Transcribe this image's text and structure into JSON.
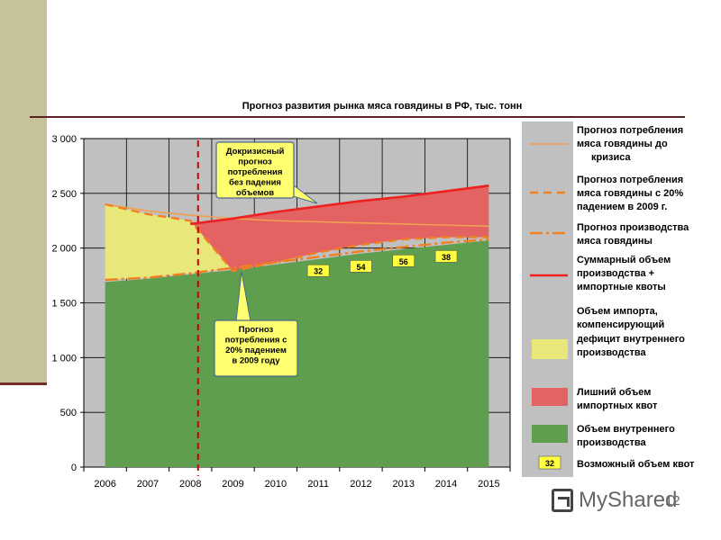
{
  "chart_data": {
    "type": "area",
    "title": "Прогноз развития рынка мяса говядины в РФ, тыс. тонн",
    "categories": [
      "2006",
      "2007",
      "2008",
      "2009",
      "2010",
      "2011",
      "2012",
      "2013",
      "2014",
      "2015"
    ],
    "ylim": [
      0,
      3000
    ],
    "yticks": [
      0,
      500,
      1000,
      1500,
      2000,
      2500,
      3000
    ],
    "ytick_labels": [
      "0",
      "500",
      "1 000",
      "1 500",
      "2 000",
      "2 500",
      "3 000"
    ],
    "grid": true,
    "legend_position": "right",
    "series": [
      {
        "key": "precrisis",
        "name": "Прогноз потребления мяса говядины до кризиса",
        "color": "#f0a050",
        "values": [
          2400,
          2340,
          2300,
          2270,
          2250,
          2240,
          2230,
          2220,
          2210,
          2200
        ]
      },
      {
        "key": "consumption",
        "name": "Прогноз потребления мяса говядины с 20% падением в 2009 г.",
        "color": "#f08020",
        "values": [
          2400,
          2310,
          2250,
          1790,
          1870,
          1960,
          2030,
          2080,
          2100,
          2100
        ]
      },
      {
        "key": "production",
        "name": "Прогноз производства мяса говядины",
        "color": "#f08020",
        "values": [
          1710,
          1730,
          1770,
          1820,
          1870,
          1920,
          1970,
          2010,
          2050,
          2080
        ]
      },
      {
        "key": "total",
        "name": "Суммарный объем производства + импортные квоты",
        "color": "#ee2020",
        "values": [
          null,
          null,
          2220,
          2270,
          2330,
          2380,
          2430,
          2470,
          2520,
          2570
        ]
      },
      {
        "key": "import_area",
        "name": "Объем импорта, компенсирующий дефицит внутреннего производства",
        "color": "#e8e87a",
        "upper": "consumption",
        "lower": "production"
      },
      {
        "key": "excess_area",
        "name": "Лишний объем импортных квот",
        "color": "#e36262",
        "upper": "total",
        "lower": "consumption"
      },
      {
        "key": "domestic_area",
        "name": "Объем внутреннего производства",
        "color": "#5f9e4e",
        "values": [
          1690,
          1720,
          1760,
          1800,
          1850,
          1900,
          1950,
          1990,
          2030,
          2070
        ]
      },
      {
        "key": "quota_box",
        "name": "Возможный объем квот",
        "color": "#ffff40"
      }
    ],
    "quota_labels": [
      {
        "x": "2011",
        "y": 1790,
        "text": "32"
      },
      {
        "x": "2012",
        "y": 1830,
        "text": "54"
      },
      {
        "x": "2013",
        "y": 1880,
        "text": "56"
      },
      {
        "x": "2014",
        "y": 1920,
        "text": "38"
      }
    ],
    "annotations": [
      {
        "key": "precrisis_callout",
        "lines": [
          "Докризисный",
          "прогноз",
          "потребления",
          "без падения",
          "объемов"
        ]
      },
      {
        "key": "drop_callout",
        "lines": [
          "Прогноз",
          "потребления с",
          "20% падением",
          "в 2009 году"
        ]
      }
    ],
    "legend_quota_value": "32",
    "crisis_marker_x": "2008"
  },
  "watermark": {
    "text": "MyShared"
  },
  "page_number": "12"
}
